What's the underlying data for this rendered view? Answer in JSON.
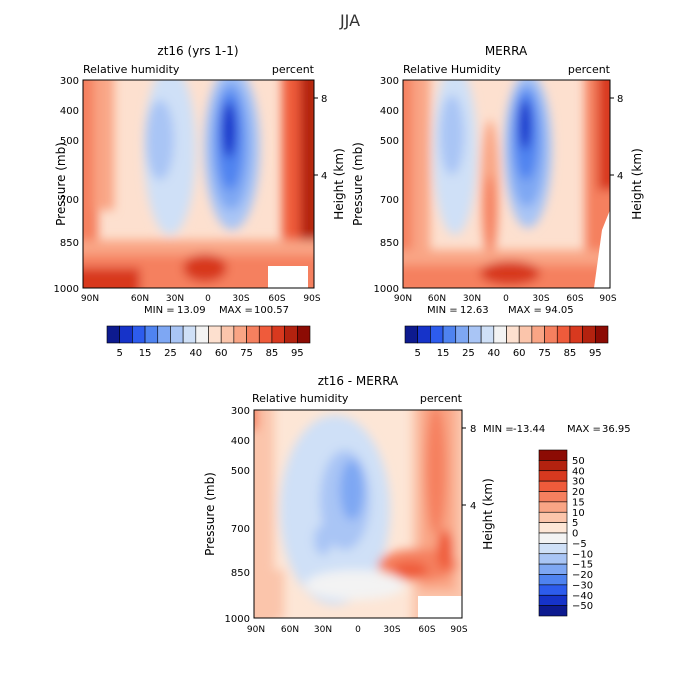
{
  "page": {
    "title": "JJA"
  },
  "chart_data": [
    {
      "type": "heatmap",
      "title": "zt16 (yrs 1-1)",
      "left_label": "Relative humidity",
      "right_label": "percent",
      "ylabel": "Pressure (mb)",
      "y2label": "Height (km)",
      "x_ticks": [
        "90N",
        "60N",
        "30N",
        "0",
        "30S",
        "60S",
        "90S"
      ],
      "y_ticks": [
        "300",
        "400",
        "500",
        "700",
        "850",
        "1000"
      ],
      "y2_ticks": [
        "8",
        "4"
      ],
      "stats": {
        "min_label": "MIN =",
        "min": "13.09",
        "max_label": "MAX =",
        "max": "100.57"
      },
      "colorbar": {
        "orientation": "horizontal",
        "levels": [
          "5",
          "15",
          "25",
          "40",
          "60",
          "75",
          "85",
          "95"
        ],
        "colors": [
          "#0d1a8f",
          "#1633c9",
          "#2d5ced",
          "#4f83f0",
          "#7ea7f3",
          "#a9c5f5",
          "#cfe0f7",
          "#f3f3f3",
          "#fde0cf",
          "#fbc5ab",
          "#f9a585",
          "#f5805f",
          "#ef5b3b",
          "#d8391f",
          "#b3220f",
          "#8c0b04"
        ]
      }
    },
    {
      "type": "heatmap",
      "title": "MERRA",
      "left_label": "Relative Humidity",
      "right_label": "percent",
      "ylabel": "Pressure (mb)",
      "y2label": "Height (km)",
      "x_ticks": [
        "90N",
        "60N",
        "30N",
        "0",
        "30S",
        "60S",
        "90S"
      ],
      "y_ticks": [
        "300",
        "400",
        "500",
        "700",
        "850",
        "1000"
      ],
      "y2_ticks": [
        "8",
        "4"
      ],
      "stats": {
        "min_label": "MIN =",
        "min": "12.63",
        "max_label": "MAX =",
        "max": "94.05"
      },
      "colorbar": {
        "orientation": "horizontal",
        "levels": [
          "5",
          "15",
          "25",
          "40",
          "60",
          "75",
          "85",
          "95"
        ],
        "colors": [
          "#0d1a8f",
          "#1633c9",
          "#2d5ced",
          "#4f83f0",
          "#7ea7f3",
          "#a9c5f5",
          "#cfe0f7",
          "#f3f3f3",
          "#fde0cf",
          "#fbc5ab",
          "#f9a585",
          "#f5805f",
          "#ef5b3b",
          "#d8391f",
          "#b3220f",
          "#8c0b04"
        ]
      }
    },
    {
      "type": "heatmap",
      "title": "zt16 - MERRA",
      "left_label": "Relative humidity",
      "right_label": "percent",
      "ylabel": "Pressure (mb)",
      "y2label": "Height (km)",
      "x_ticks": [
        "90N",
        "60N",
        "30N",
        "0",
        "30S",
        "60S",
        "90S"
      ],
      "y_ticks": [
        "300",
        "400",
        "500",
        "700",
        "850",
        "1000"
      ],
      "y2_ticks": [
        "8",
        "4"
      ],
      "stats": {
        "min_label": "MIN =",
        "min": "-13.44",
        "max_label": "MAX =",
        "max": "36.95"
      },
      "colorbar": {
        "orientation": "vertical",
        "levels": [
          "50",
          "40",
          "30",
          "20",
          "15",
          "10",
          "5",
          "0",
          "−5",
          "−10",
          "−15",
          "−20",
          "−30",
          "−40",
          "−50"
        ],
        "colors": [
          "#8c0b04",
          "#b3220f",
          "#d8391f",
          "#ef5b3b",
          "#f5805f",
          "#f9a585",
          "#fbc5ab",
          "#fde6d6",
          "#f3f3f3",
          "#cfe0f7",
          "#a9c5f5",
          "#7ea7f3",
          "#4f83f0",
          "#2d5ced",
          "#1633c9",
          "#0d1a8f"
        ]
      }
    }
  ]
}
